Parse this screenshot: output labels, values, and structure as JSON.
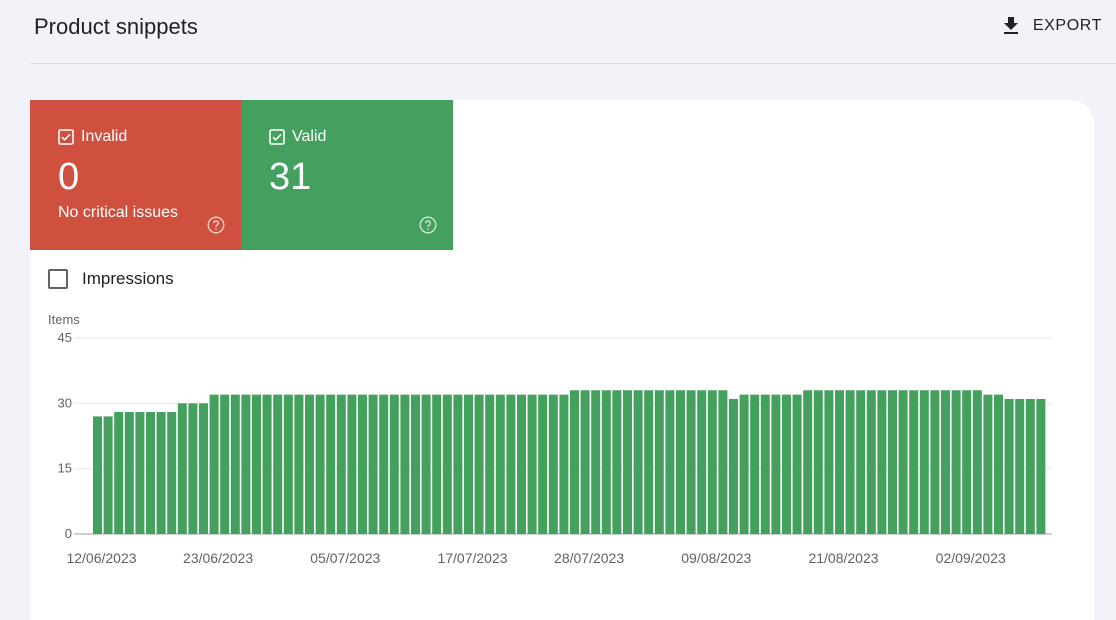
{
  "header": {
    "title": "Product snippets",
    "export_label": "EXPORT",
    "export_icon": "download-icon"
  },
  "summary": {
    "invalid": {
      "label": "Invalid",
      "count": "0",
      "subtitle": "No critical issues",
      "color": "#d05040"
    },
    "valid": {
      "label": "Valid",
      "count": "31",
      "color": "#44a05e"
    }
  },
  "impressions": {
    "label": "Impressions",
    "checked": false
  },
  "chart_data": {
    "type": "bar",
    "ylabel": "Items",
    "ylim": [
      0,
      45
    ],
    "yticks": [
      0,
      15,
      30,
      45
    ],
    "bar_color": "#43a05d",
    "x_tick_labels": [
      "12/06/2023",
      "23/06/2023",
      "05/07/2023",
      "17/07/2023",
      "28/07/2023",
      "09/08/2023",
      "21/08/2023",
      "02/09/2023"
    ],
    "x_tick_positions": [
      0,
      11,
      23,
      35,
      46,
      58,
      70,
      82
    ],
    "values": [
      27,
      27,
      28,
      28,
      28,
      28,
      28,
      28,
      30,
      30,
      30,
      32,
      32,
      32,
      32,
      32,
      32,
      32,
      32,
      32,
      32,
      32,
      32,
      32,
      32,
      32,
      32,
      32,
      32,
      32,
      32,
      32,
      32,
      32,
      32,
      32,
      32,
      32,
      32,
      32,
      32,
      32,
      32,
      32,
      32,
      33,
      33,
      33,
      33,
      33,
      33,
      33,
      33,
      33,
      33,
      33,
      33,
      33,
      33,
      33,
      31,
      32,
      32,
      32,
      32,
      32,
      32,
      33,
      33,
      33,
      33,
      33,
      33,
      33,
      33,
      33,
      33,
      33,
      33,
      33,
      33,
      33,
      33,
      33,
      32,
      32,
      31,
      31,
      31,
      31
    ]
  }
}
